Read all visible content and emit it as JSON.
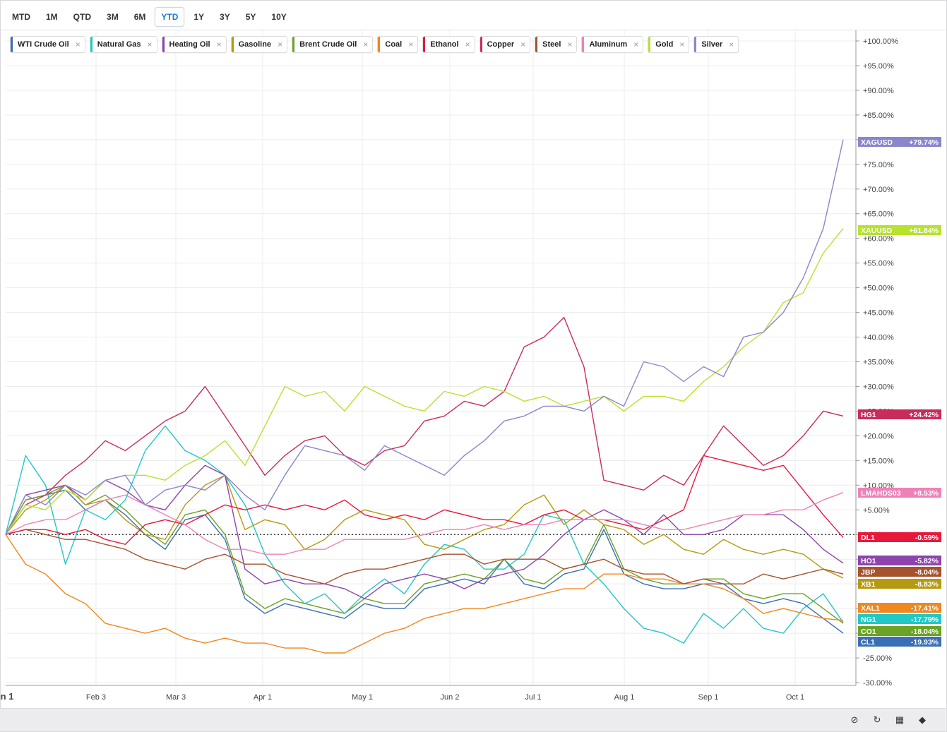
{
  "toolbar": {
    "buttons": [
      "MTD",
      "1M",
      "QTD",
      "3M",
      "6M",
      "YTD",
      "1Y",
      "3Y",
      "5Y",
      "10Y"
    ],
    "active": "YTD"
  },
  "legend": [
    {
      "label": "WTI Crude Oil",
      "color": "#3a6fb5"
    },
    {
      "label": "Natural Gas",
      "color": "#22c8c6"
    },
    {
      "label": "Heating Oil",
      "color": "#8e44ad"
    },
    {
      "label": "Gasoline",
      "color": "#b59a10"
    },
    {
      "label": "Brent Crude Oil",
      "color": "#6aa326"
    },
    {
      "label": "Coal",
      "color": "#f0871f"
    },
    {
      "label": "Ethanol",
      "color": "#e8183b"
    },
    {
      "label": "Copper",
      "color": "#c92c5a"
    },
    {
      "label": "Steel",
      "color": "#a6522d"
    },
    {
      "label": "Aluminum",
      "color": "#ee82b8"
    },
    {
      "label": "Gold",
      "color": "#b7e22e"
    },
    {
      "label": "Silver",
      "color": "#8b85cc"
    }
  ],
  "footer_icons": [
    "hide-icon",
    "refresh-icon",
    "grid-icon",
    "tag-icon"
  ],
  "chart_data": {
    "type": "line",
    "x_labels": [
      "n 1",
      "Feb 3",
      "Mar 3",
      "Apr 1",
      "May 1",
      "Jun 2",
      "Jul 1",
      "Aug 1",
      "Sep 1",
      "Oct 1"
    ],
    "ylim": [
      -30,
      100
    ],
    "y_ticks": [
      "+100.00%",
      "+95.00%",
      "+90.00%",
      "+85.00%",
      "+80.00%",
      "+75.00%",
      "+70.00%",
      "+65.00%",
      "+60.00%",
      "+55.00%",
      "+50.00%",
      "+45.00%",
      "+40.00%",
      "+35.00%",
      "+30.00%",
      "+25.00%",
      "+20.00%",
      "+15.00%",
      "+10.00%",
      "+5.00%",
      "0.00%",
      "-5.00%",
      "-10.00%",
      "-15.00%",
      "-20.00%",
      "-25.00%",
      "-30.00%"
    ],
    "grid": true,
    "baseline": 0,
    "x": [
      0,
      5,
      10,
      15,
      20,
      25,
      30,
      35,
      40,
      45,
      50,
      55,
      60,
      65,
      70,
      75,
      80,
      85,
      90,
      95,
      100,
      105,
      110,
      115,
      120,
      125,
      130,
      135,
      140,
      145,
      150,
      155,
      160,
      165,
      170,
      175,
      180,
      185,
      190,
      195,
      200,
      205,
      210
    ],
    "series": [
      {
        "name": "Silver",
        "label": "XAGUSD",
        "value": "+79.74%",
        "color": "#8b85cc",
        "values": [
          0,
          8,
          6,
          10,
          8,
          11,
          12,
          6,
          9,
          10,
          9,
          12,
          8,
          5,
          12,
          18,
          17,
          16,
          13,
          18,
          16,
          14,
          12,
          16,
          19,
          23,
          24,
          26,
          26,
          25,
          28,
          26,
          35,
          34,
          31,
          34,
          32,
          40,
          41,
          45,
          52,
          62,
          80
        ]
      },
      {
        "name": "Gold",
        "label": "XAUUSD",
        "value": "+61.84%",
        "color": "#b7e22e",
        "values": [
          0,
          6,
          5,
          9,
          7,
          11,
          12,
          12,
          11,
          14,
          16,
          19,
          14,
          22,
          30,
          28,
          29,
          25,
          30,
          28,
          26,
          25,
          29,
          28,
          30,
          29,
          27,
          28,
          26,
          27,
          28,
          25,
          28,
          28,
          27,
          31,
          34,
          38,
          41,
          47,
          49,
          57,
          62
        ]
      },
      {
        "name": "Copper",
        "label": "HG1",
        "value": "+24.42%",
        "color": "#c92c5a",
        "values": [
          0,
          6,
          8,
          12,
          15,
          19,
          17,
          20,
          23,
          25,
          30,
          24,
          18,
          12,
          16,
          19,
          20,
          16,
          14,
          17,
          18,
          23,
          24,
          27,
          26,
          29,
          38,
          40,
          44,
          34,
          11,
          10,
          9,
          12,
          10,
          16,
          22,
          18,
          14,
          16,
          20,
          25,
          24
        ]
      },
      {
        "name": "Aluminum",
        "label": "LMAHDS03",
        "value": "+8.53%",
        "color": "#ee82b8",
        "values": [
          0,
          2,
          3,
          3,
          5,
          7,
          8,
          6,
          4,
          2,
          -1,
          -3,
          -3,
          -4,
          -4,
          -3,
          -3,
          -1,
          -1,
          -1,
          -1,
          0,
          1,
          1,
          2,
          1,
          2,
          2,
          3,
          3,
          3,
          3,
          2,
          1,
          1,
          2,
          3,
          4,
          4,
          5,
          5,
          7,
          8.5
        ]
      },
      {
        "name": "Ethanol",
        "label": "DL1",
        "value": "-0.59%",
        "color": "#e8183b",
        "values": [
          0,
          1,
          1,
          0,
          1,
          -1,
          -2,
          2,
          3,
          2,
          4,
          6,
          5,
          6,
          5,
          6,
          5,
          7,
          4,
          3,
          4,
          3,
          5,
          4,
          3,
          3,
          2,
          4,
          5,
          3,
          3,
          2,
          1,
          3,
          5,
          16,
          15,
          14,
          13,
          14,
          9,
          4,
          -0.6
        ]
      },
      {
        "name": "Heating Oil",
        "label": "HO1",
        "value": "-5.82%",
        "color": "#8e44ad",
        "values": [
          0,
          8,
          9,
          10,
          7,
          11,
          9,
          6,
          5,
          10,
          14,
          12,
          -7,
          -10,
          -9,
          -10,
          -10,
          -11,
          -13,
          -10,
          -9,
          -8,
          -9,
          -11,
          -9,
          -8,
          -7,
          -4,
          0,
          3,
          5,
          3,
          0,
          4,
          0,
          0,
          1,
          4,
          4,
          4,
          1,
          -3,
          -5.8
        ]
      },
      {
        "name": "Steel",
        "label": "JBP",
        "value": "-8.04%",
        "color": "#a6522d",
        "values": [
          0,
          1,
          0,
          -1,
          -1,
          -2,
          -3,
          -5,
          -6,
          -7,
          -5,
          -4,
          -6,
          -6,
          -8,
          -9,
          -10,
          -8,
          -7,
          -7,
          -6,
          -5,
          -4,
          -4,
          -6,
          -5,
          -5,
          -5,
          -7,
          -6,
          -5,
          -7,
          -8,
          -8,
          -10,
          -9,
          -10,
          -10,
          -8,
          -9,
          -8,
          -7,
          -8
        ]
      },
      {
        "name": "Gasoline",
        "label": "XB1",
        "value": "-8.83%",
        "color": "#b59a10",
        "values": [
          0,
          5,
          7,
          10,
          6,
          7,
          3,
          0,
          -1,
          6,
          10,
          12,
          1,
          3,
          2,
          -3,
          -1,
          3,
          5,
          4,
          3,
          -2,
          -3,
          -1,
          1,
          2,
          6,
          8,
          2,
          5,
          2,
          1,
          -2,
          0,
          -3,
          -4,
          -1,
          -3,
          -4,
          -3,
          -4,
          -7,
          -8.8
        ]
      },
      {
        "name": "Coal",
        "label": "XAL1",
        "value": "-17.41%",
        "color": "#f0871f",
        "values": [
          0,
          -6,
          -8,
          -12,
          -14,
          -18,
          -19,
          -20,
          -19,
          -21,
          -22,
          -21,
          -22,
          -22,
          -23,
          -23,
          -24,
          -24,
          -22,
          -20,
          -19,
          -17,
          -16,
          -15,
          -15,
          -14,
          -13,
          -12,
          -11,
          -11,
          -8,
          -8,
          -9,
          -9,
          -10,
          -10,
          -11,
          -13,
          -16,
          -15,
          -16,
          -17,
          -17.4
        ]
      },
      {
        "name": "Natural Gas",
        "label": "NG1",
        "value": "-17.79%",
        "color": "#22c8c6",
        "values": [
          0,
          16,
          10,
          -6,
          5,
          3,
          7,
          17,
          22,
          17,
          15,
          12,
          6,
          -4,
          -10,
          -14,
          -12,
          -16,
          -12,
          -9,
          -12,
          -6,
          -2,
          -3,
          -7,
          -7,
          -4,
          4,
          3,
          -6,
          -10,
          -15,
          -19,
          -20,
          -22,
          -16,
          -19,
          -15,
          -19,
          -20,
          -15,
          -12,
          -17.8
        ]
      },
      {
        "name": "Brent Crude Oil",
        "label": "CO1",
        "value": "-18.04%",
        "color": "#6aa326",
        "values": [
          0,
          7,
          8,
          10,
          6,
          8,
          5,
          1,
          -2,
          4,
          5,
          0,
          -12,
          -15,
          -13,
          -14,
          -15,
          -16,
          -13,
          -14,
          -14,
          -10,
          -9,
          -8,
          -9,
          -5,
          -9,
          -10,
          -7,
          -6,
          2,
          -7,
          -9,
          -10,
          -10,
          -9,
          -9,
          -12,
          -13,
          -12,
          -12,
          -15,
          -18
        ]
      },
      {
        "name": "WTI Crude Oil",
        "label": "CL1",
        "value": "-19.93%",
        "color": "#3a6fb5",
        "values": [
          0,
          7,
          8,
          9,
          5,
          7,
          4,
          0,
          -3,
          3,
          4,
          -1,
          -13,
          -16,
          -14,
          -15,
          -16,
          -17,
          -14,
          -15,
          -15,
          -11,
          -10,
          -9,
          -10,
          -5,
          -10,
          -11,
          -8,
          -7,
          1,
          -8,
          -10,
          -11,
          -11,
          -10,
          -10,
          -13,
          -14,
          -13,
          -14,
          -17,
          -20
        ]
      }
    ]
  }
}
